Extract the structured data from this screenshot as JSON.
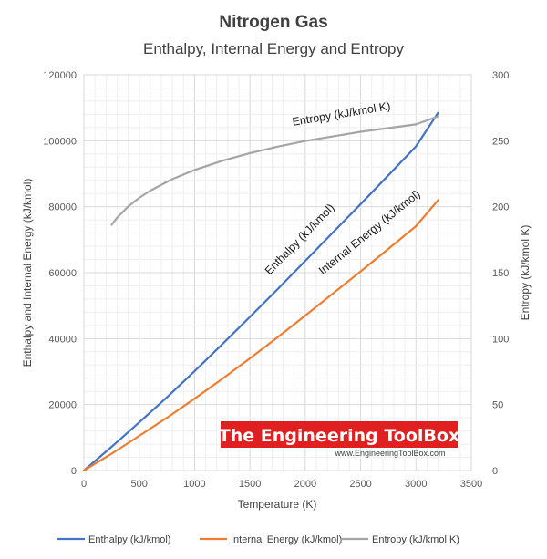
{
  "chart_data": {
    "type": "line",
    "title": "Nitrogen Gas",
    "subtitle": "Enthalpy, Internal Energy and Entropy",
    "xlabel": "Temperature  (K)",
    "ylabel": "Enthalpy  and Internal Energy (kJ/kmol)",
    "y2label": "Entropy  (kJ/kmol K)",
    "xlim": [
      0,
      3500
    ],
    "ylim": [
      0,
      120000
    ],
    "y2lim": [
      0,
      300
    ],
    "xticks": [
      "0",
      "500",
      "1000",
      "1500",
      "2000",
      "2500",
      "3000",
      "3500"
    ],
    "yticks": [
      "0",
      "20000",
      "40000",
      "60000",
      "80000",
      "100000",
      "120000"
    ],
    "y2ticks": [
      "0",
      "50",
      "100",
      "150",
      "200",
      "250",
      "300"
    ],
    "grid": true,
    "legend_position": "bottom",
    "series": [
      {
        "name": "Enthalpy (kJ/kmol)",
        "axis": "left",
        "color": "#4472C4",
        "x": [
          0,
          250,
          500,
          750,
          1000,
          1250,
          1500,
          1750,
          2000,
          2250,
          2500,
          2750,
          3000,
          3200
        ],
        "y": [
          0,
          7200,
          14600,
          22200,
          30100,
          38300,
          46600,
          55000,
          63600,
          72200,
          80800,
          89500,
          98300,
          108500
        ]
      },
      {
        "name": "Internal Energy (kJ/kmol)",
        "axis": "left",
        "color": "#ED7D31",
        "x": [
          0,
          250,
          500,
          750,
          1000,
          1250,
          1500,
          1750,
          2000,
          2250,
          2500,
          2750,
          3000,
          3200
        ],
        "y": [
          0,
          5100,
          10500,
          16000,
          21800,
          27800,
          34000,
          40400,
          47000,
          53700,
          60400,
          67200,
          74100,
          82000
        ]
      },
      {
        "name": "Entropy (kJ/kmol K)",
        "axis": "right",
        "color": "#A5A5A5",
        "x": [
          250,
          300,
          400,
          500,
          600,
          800,
          1000,
          1250,
          1500,
          1750,
          2000,
          2500,
          3000,
          3200
        ],
        "y": [
          186.2,
          191.6,
          200.2,
          206.7,
          212.2,
          220.9,
          227.8,
          234.8,
          240.6,
          245.5,
          249.8,
          256.8,
          262.4,
          268.5
        ]
      }
    ],
    "annotations": [
      {
        "text": "Entropy (kJ/kmol K)",
        "series": 2
      },
      {
        "text": "Enthalpy (kJ/kmol)",
        "series": 0
      },
      {
        "text": "Internal Energy (kJ/kmol)",
        "series": 1
      }
    ]
  },
  "watermark": {
    "title": "The Engineering ToolBox",
    "url": "www.EngineeringToolBox.com",
    "color": "#E02020"
  }
}
